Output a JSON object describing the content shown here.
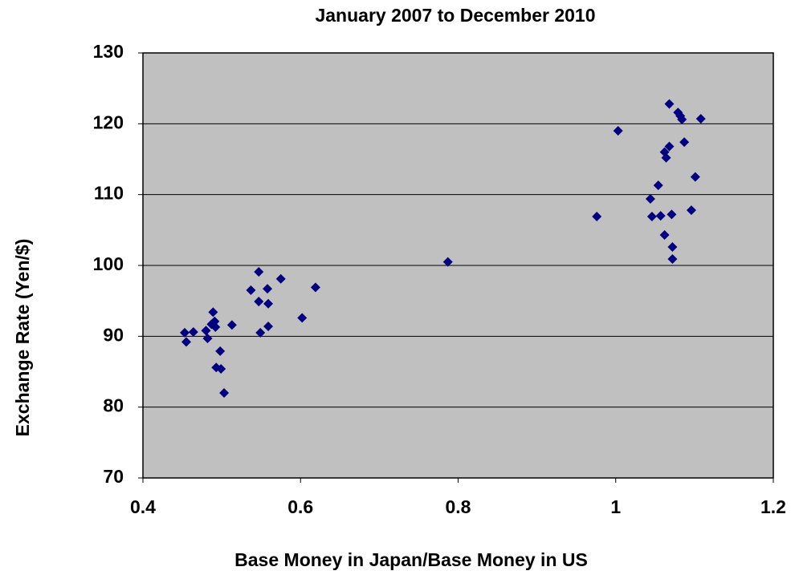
{
  "chart_data": {
    "type": "scatter",
    "title": "January 2007 to December 2010",
    "x_label": "Base Money in Japan/Base Money in US",
    "y_label": "Exchange Rate (Yen/$)",
    "x": [
      0.453,
      0.455,
      0.464,
      0.482,
      0.48,
      0.487,
      0.489,
      0.491,
      0.492,
      0.493,
      0.498,
      0.499,
      0.503,
      0.513,
      0.537,
      0.547,
      0.547,
      0.549,
      0.558,
      0.559,
      0.559,
      0.575,
      0.602,
      0.619,
      0.787,
      0.976,
      1.003,
      1.044,
      1.046,
      1.054,
      1.057,
      1.062,
      1.062,
      1.064,
      1.068,
      1.068,
      1.071,
      1.072,
      1.072,
      1.079,
      1.082,
      1.084,
      1.087,
      1.096,
      1.101,
      1.108
    ],
    "values": [
      90.5,
      89.2,
      90.6,
      89.7,
      90.8,
      91.7,
      93.4,
      92.1,
      91.3,
      85.6,
      87.9,
      85.4,
      82.0,
      91.6,
      96.5,
      99.1,
      94.9,
      90.5,
      96.7,
      94.6,
      91.4,
      98.1,
      92.6,
      96.9,
      100.5,
      106.9,
      119.0,
      109.4,
      106.9,
      111.3,
      107.0,
      104.3,
      116.0,
      115.2,
      116.8,
      122.8,
      107.2,
      102.6,
      100.9,
      121.6,
      121.1,
      120.6,
      117.4,
      107.8,
      112.5,
      120.7
    ],
    "color": "#000080",
    "xlim": [
      0.4,
      1.2
    ],
    "xticks": [
      0.4,
      0.6,
      0.8,
      1,
      1.2
    ],
    "ylim": [
      70,
      130
    ],
    "yticks": [
      70,
      80,
      90,
      100,
      110,
      120,
      130
    ],
    "grid": true
  }
}
